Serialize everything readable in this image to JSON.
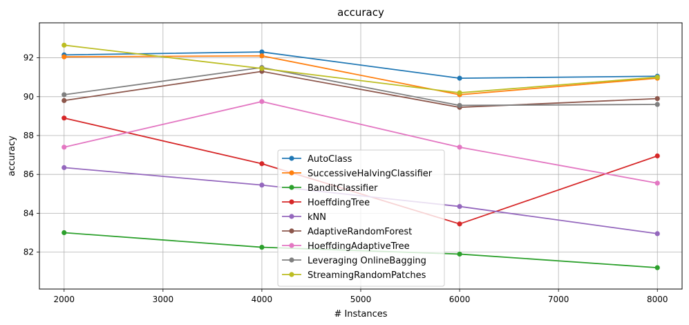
{
  "chart_data": {
    "type": "line",
    "title": "accuracy",
    "xlabel": "# Instances",
    "ylabel": "accuracy",
    "x": [
      2000,
      4000,
      6000,
      8000
    ],
    "xlim": [
      1750,
      8250
    ],
    "ylim": [
      80.1,
      93.8
    ],
    "xticks": [
      2000,
      3000,
      4000,
      5000,
      6000,
      7000,
      8000
    ],
    "yticks": [
      82,
      84,
      86,
      88,
      90,
      92
    ],
    "grid": true,
    "legend_position": "lower center",
    "series": [
      {
        "name": "AutoClass",
        "color": "#1f77b4",
        "values": [
          92.15,
          92.3,
          90.95,
          91.05
        ]
      },
      {
        "name": "SuccessiveHalvingClassifier",
        "color": "#ff7f0e",
        "values": [
          92.05,
          92.1,
          90.1,
          90.95
        ]
      },
      {
        "name": "BanditClassifier",
        "color": "#2ca02c",
        "values": [
          83.0,
          82.25,
          81.9,
          81.2
        ]
      },
      {
        "name": "HoeffdingTree",
        "color": "#d62728",
        "values": [
          88.9,
          86.55,
          83.45,
          86.95
        ]
      },
      {
        "name": "kNN",
        "color": "#9467bd",
        "values": [
          86.35,
          85.45,
          84.35,
          82.95
        ]
      },
      {
        "name": "AdaptiveRandomForest",
        "color": "#8c564b",
        "values": [
          89.8,
          91.3,
          89.45,
          89.9
        ]
      },
      {
        "name": "HoeffdingAdaptiveTree",
        "color": "#e377c2",
        "values": [
          87.4,
          89.75,
          87.4,
          85.55
        ]
      },
      {
        "name": "Leveraging OnlineBagging",
        "color": "#7f7f7f",
        "values": [
          90.1,
          91.5,
          89.55,
          89.6
        ]
      },
      {
        "name": "StreamingRandomPatches",
        "color": "#bcbd22",
        "values": [
          92.65,
          91.45,
          90.2,
          91.0
        ]
      }
    ]
  }
}
